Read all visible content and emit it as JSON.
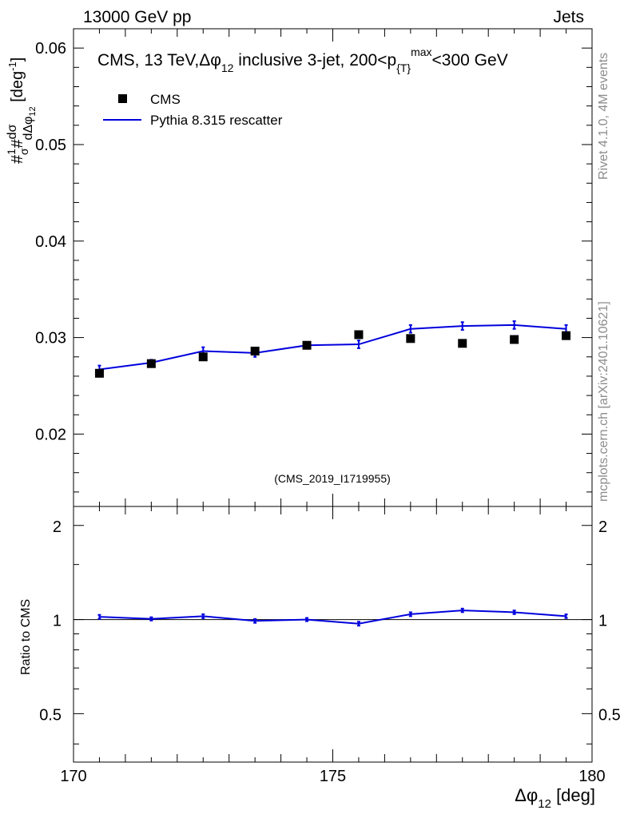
{
  "header": {
    "left": "13000 GeV pp",
    "right": "Jets"
  },
  "side_text": {
    "rivet": "Rivet 4.1.0,  4M events",
    "mcplots": "mcplots.cern.ch [arXiv:2401.10621]"
  },
  "watermark": "(CMS_2019_I1719955)",
  "chart_data": [
    {
      "type": "scatter",
      "title": "CMS, 13 TeV,Δφ 12 inclusive 3-jet, 200<p{T}max<300 GeV",
      "title_parts": {
        "prefix": "CMS, 13 TeV,Δφ",
        "sub1": "12",
        "middle": " inclusive 3-jet, 200<p",
        "sub2": "{T}",
        "sup": "max",
        "suffix": "<300 GeV"
      },
      "ylabel": "#1/σ # dσ/dΔφ 12 [deg⁻¹]",
      "xlim": [
        170,
        180
      ],
      "ylim": [
        0.0125,
        0.062
      ],
      "yticks": [
        0.02,
        0.03,
        0.04,
        0.05,
        0.06
      ],
      "ytick_labels": [
        "0.02",
        "0.03",
        "0.04",
        "0.05",
        "0.06"
      ],
      "legend": [
        {
          "label": "CMS",
          "marker": "square",
          "color": "#000000"
        },
        {
          "label": "Pythia 8.315 rescatter",
          "marker": "line",
          "color": "#0000dd"
        }
      ],
      "series": [
        {
          "name": "CMS",
          "color": "#000000",
          "x": [
            170.5,
            171.5,
            172.5,
            173.5,
            174.5,
            175.5,
            176.5,
            177.5,
            178.5,
            179.5
          ],
          "y": [
            0.0263,
            0.0273,
            0.028,
            0.0286,
            0.0292,
            0.0303,
            0.0299,
            0.0294,
            0.0298,
            0.0302
          ]
        },
        {
          "name": "Pythia 8.315 rescatter",
          "color": "#0000dd",
          "x": [
            170.5,
            171.5,
            172.5,
            173.5,
            174.5,
            175.5,
            176.5,
            177.5,
            178.5,
            179.5
          ],
          "y": [
            0.0267,
            0.0274,
            0.0286,
            0.0284,
            0.0292,
            0.0293,
            0.0309,
            0.0312,
            0.0313,
            0.0309
          ],
          "yerr": [
            0.0004,
            0.0003,
            0.0004,
            0.0004,
            0.0003,
            0.0004,
            0.0004,
            0.0004,
            0.0004,
            0.0004
          ]
        }
      ]
    },
    {
      "type": "line",
      "ylabel": "Ratio to CMS",
      "xlabel": "Δφ 12 [deg]",
      "xlabel_parts": {
        "prefix": "Δφ",
        "sub": "12",
        "suffix": " [deg]"
      },
      "xlim": [
        170,
        180
      ],
      "ylim": [
        0.35,
        2.3
      ],
      "yticks": [
        0.5,
        1,
        2
      ],
      "ytick_labels": [
        "0.5",
        "1",
        "2"
      ],
      "xticks": [
        170,
        175,
        180
      ],
      "xtick_labels": [
        "170",
        "175",
        "180"
      ],
      "reference_line": 1,
      "series": [
        {
          "name": "Pythia 8.315 rescatter / CMS",
          "color": "#0000dd",
          "x": [
            170.5,
            171.5,
            172.5,
            173.5,
            174.5,
            175.5,
            176.5,
            177.5,
            178.5,
            179.5
          ],
          "y": [
            1.02,
            1.005,
            1.025,
            0.99,
            1.0,
            0.97,
            1.04,
            1.07,
            1.055,
            1.025
          ],
          "yerr": [
            0.015,
            0.012,
            0.015,
            0.014,
            0.012,
            0.014,
            0.015,
            0.014,
            0.014,
            0.014
          ]
        }
      ]
    }
  ]
}
